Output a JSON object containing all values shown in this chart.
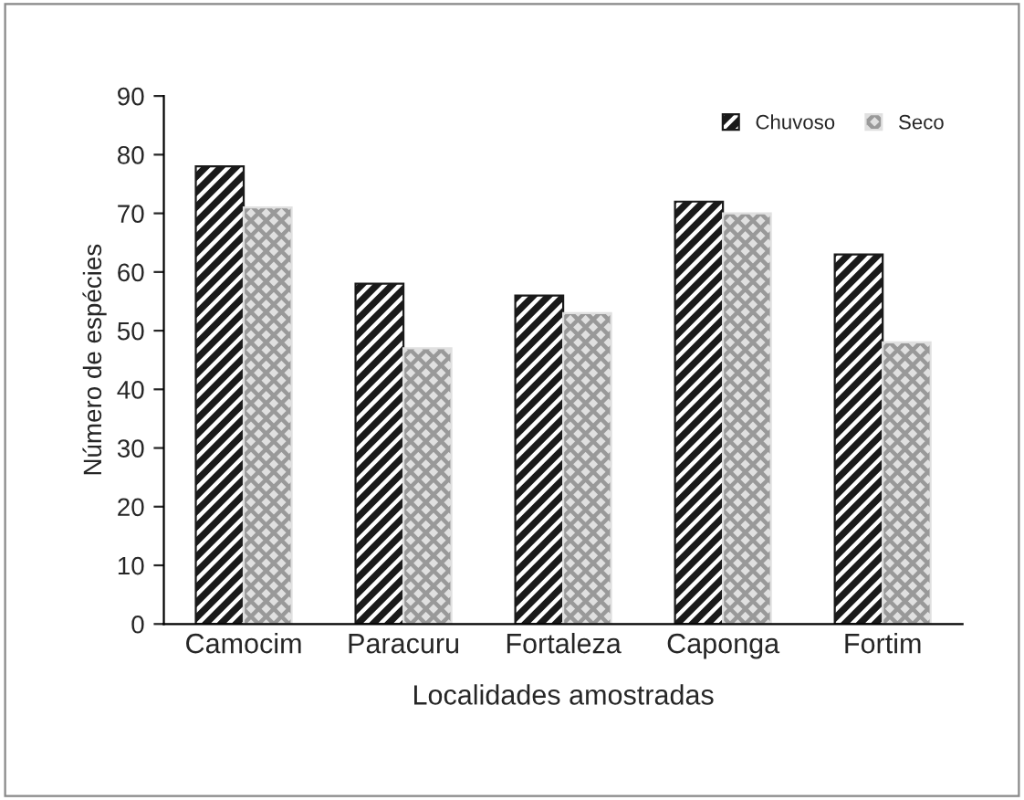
{
  "chart_data": {
    "type": "bar",
    "xlabel": "Localidades amostradas",
    "ylabel": "Número de espécies",
    "categories": [
      "Camocim",
      "Paracuru",
      "Fortaleza",
      "Caponga",
      "Fortim"
    ],
    "series": [
      {
        "name": "Chuvoso",
        "color": "#1a1a1a",
        "values": [
          78,
          58,
          56,
          72,
          63
        ]
      },
      {
        "name": "Seco",
        "color": "#e0e0e0",
        "values": [
          71,
          47,
          53,
          70,
          48
        ]
      }
    ],
    "ylim": [
      0,
      90
    ],
    "yticks": [
      0,
      10,
      20,
      30,
      40,
      50,
      60,
      70,
      80,
      90
    ],
    "grid": false,
    "legend": "top right"
  }
}
